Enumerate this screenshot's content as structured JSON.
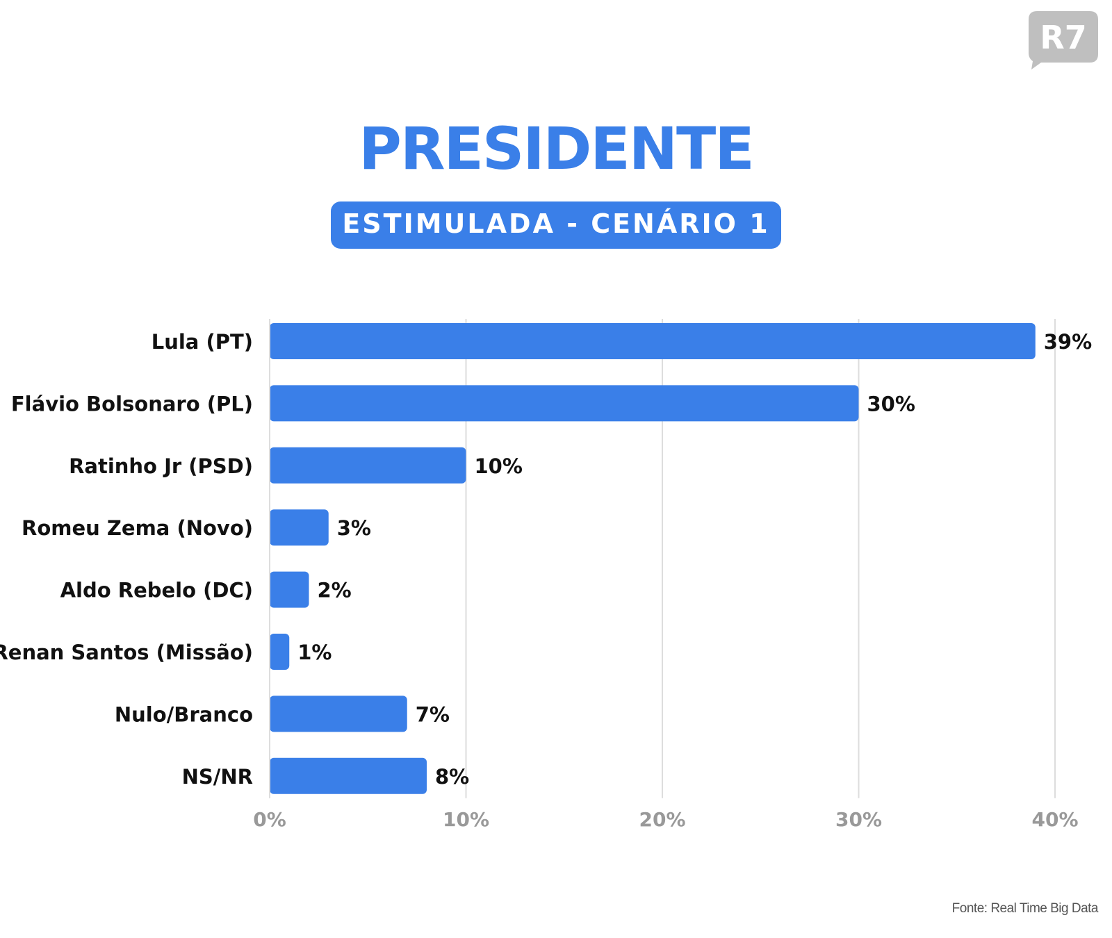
{
  "brand": {
    "logo_text": "R7",
    "accent": "#3a7fe8",
    "logo_color": "#bfbfbf"
  },
  "header": {
    "title": "PRESIDENTE",
    "subtitle": "ESTIMULADA - CENÁRIO 1"
  },
  "footer": {
    "source": "Fonte: Real Time Big Data"
  },
  "chart_data": {
    "type": "bar",
    "orientation": "horizontal",
    "title": "PRESIDENTE",
    "subtitle": "ESTIMULADA - CENÁRIO 1",
    "categories": [
      "Lula (PT)",
      "Flávio Bolsonaro (PL)",
      "Ratinho Jr (PSD)",
      "Romeu Zema (Novo)",
      "Aldo Rebelo (DC)",
      "Renan Santos (Missão)",
      "Nulo/Branco",
      "NS/NR"
    ],
    "values": [
      39,
      30,
      10,
      3,
      2,
      1,
      7,
      8
    ],
    "value_labels": [
      "39%",
      "30%",
      "10%",
      "3%",
      "2%",
      "1%",
      "7%",
      "8%"
    ],
    "xlim": [
      0,
      40
    ],
    "x_ticks": [
      0,
      10,
      20,
      30,
      40
    ],
    "x_tick_labels": [
      "0%",
      "10%",
      "20%",
      "30%",
      "40%"
    ],
    "xlabel": "",
    "ylabel": "",
    "grid": "vertical",
    "legend": "none",
    "colors": {
      "bar": "#3a7fe8",
      "grid": "#dddddd",
      "tick_label": "#999999",
      "label": "#111111"
    }
  }
}
